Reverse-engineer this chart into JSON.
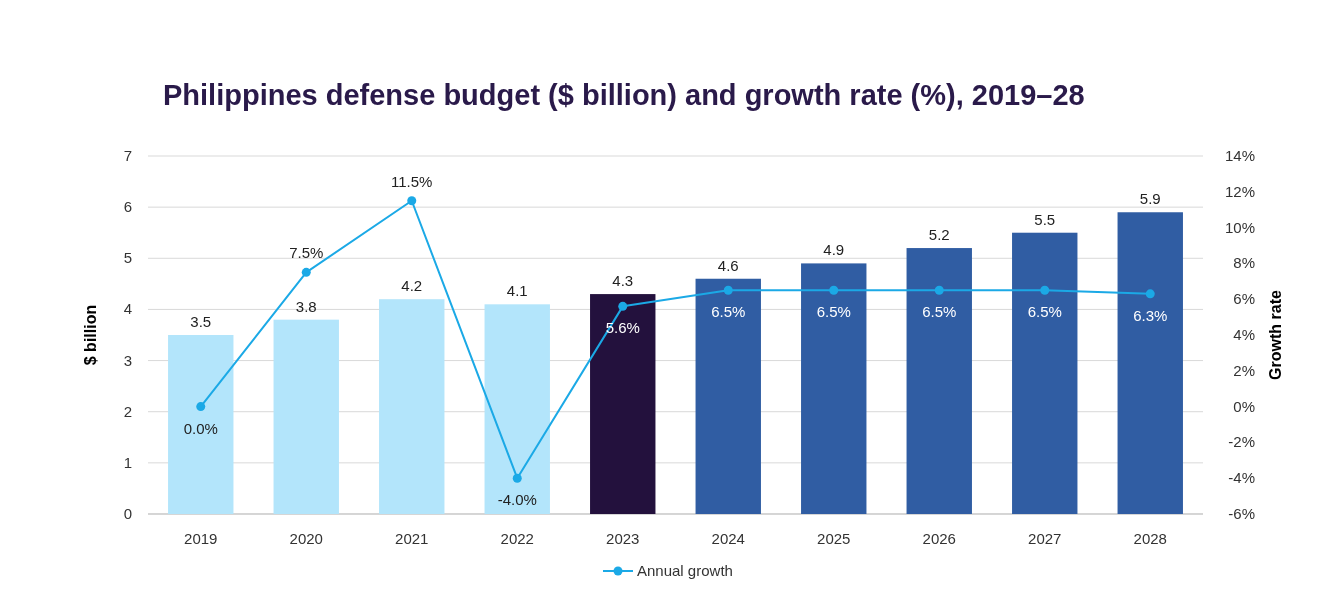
{
  "chart_data": {
    "type": "bar",
    "title": "Philippines defense budget ($ billion) and growth rate (%), 2019–28",
    "categories": [
      "2019",
      "2020",
      "2021",
      "2022",
      "2023",
      "2024",
      "2025",
      "2026",
      "2027",
      "2028"
    ],
    "series": [
      {
        "values": [
          3.5,
          3.8,
          4.2,
          4.1,
          4.3,
          4.6,
          4.9,
          5.2,
          5.5,
          5.9
        ],
        "colors": [
          "#b3e5fb",
          "#b3e5fb",
          "#b3e5fb",
          "#b3e5fb",
          "#23113d",
          "#305da3",
          "#305da3",
          "#305da3",
          "#305da3",
          "#305da3"
        ]
      },
      {
        "type": "line",
        "axis": "y2",
        "name": "Annual growth",
        "color": "#1ba9e6",
        "marker": "circle",
        "values": [
          0,
          7.5,
          11.5,
          -4,
          5.6,
          6.5,
          6.5,
          6.5,
          6.5,
          6.3
        ],
        "value_labels": [
          "0.0%",
          "7.5%",
          "11.5%",
          "-4.0%",
          "5.6%",
          "6.5%",
          "6.5%",
          "6.5%",
          "6.5%",
          "6.3%"
        ]
      }
    ],
    "data_labels": true,
    "ylabel": "$ billion",
    "y2label": "Growth rate",
    "ylim": [
      0,
      7
    ],
    "yticks": [
      0,
      1,
      2,
      3,
      4,
      5,
      6,
      7
    ],
    "y2lim": [
      -6,
      14
    ],
    "y2ticks": [
      {
        "value": -6,
        "label": "-6%"
      },
      {
        "value": -4,
        "label": "-4%"
      },
      {
        "value": -2,
        "label": "-2%"
      },
      {
        "value": 0,
        "label": "0%"
      },
      {
        "value": 2,
        "label": "2%"
      },
      {
        "value": 4,
        "label": "4%"
      },
      {
        "value": 6,
        "label": "6%"
      },
      {
        "value": 8,
        "label": "8%"
      },
      {
        "value": 10,
        "label": "10%"
      },
      {
        "value": 12,
        "label": "12%"
      },
      {
        "value": 14,
        "label": "14%"
      }
    ],
    "grid": "y",
    "legend": "bottom"
  }
}
